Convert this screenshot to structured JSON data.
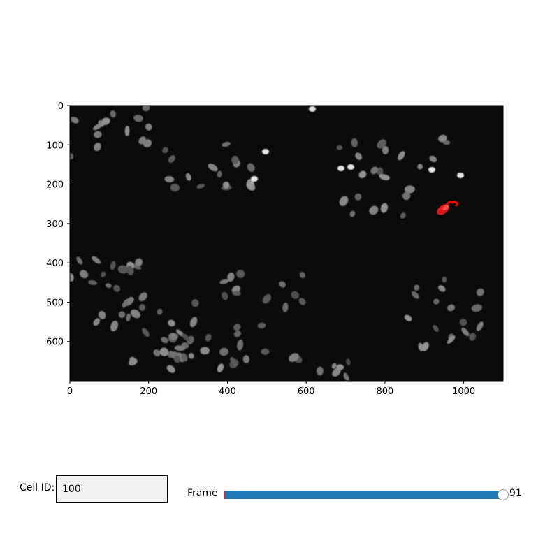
{
  "plot": {
    "x_axis": {
      "range": [
        0,
        1100
      ],
      "ticks": [
        "0",
        "200",
        "400",
        "600",
        "800",
        "1000"
      ]
    },
    "y_axis": {
      "range": [
        0,
        700
      ],
      "inverted": true,
      "ticks": [
        "0",
        "100",
        "200",
        "300",
        "400",
        "500",
        "600"
      ]
    },
    "image_background": "#0b0b0b",
    "track_color": "#ff0000"
  },
  "controls": {
    "cell_id_label": "Cell ID:",
    "cell_id_value": "100",
    "frame_label": "Frame",
    "frame_value": "91",
    "slider_fill_color": "#1f77b4",
    "slider_start_color": "#d62728"
  }
}
